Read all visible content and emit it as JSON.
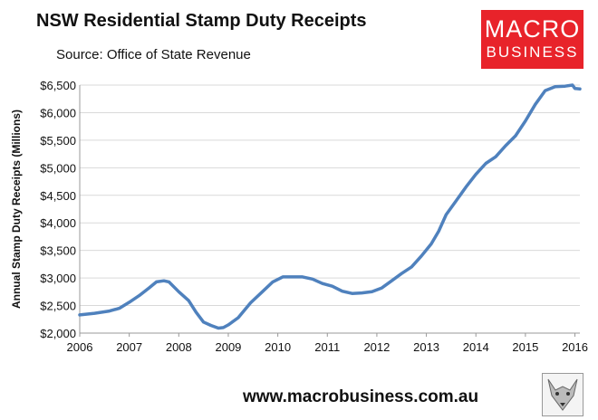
{
  "header": {
    "title": "NSW Residential Stamp Duty Receipts",
    "source": "Source: Office of State Revenue"
  },
  "logo": {
    "line1": "MACRO",
    "line2": "BUSINESS"
  },
  "footer": {
    "website": "www.macrobusiness.com.au"
  },
  "colors": {
    "line": "#4f81bd",
    "logo_bg": "#e8232a",
    "grid": "#d9d9d9"
  },
  "chart_data": {
    "type": "line",
    "title": "NSW Residential Stamp Duty Receipts",
    "xlabel": "",
    "ylabel": "Annual Stamp Duty Receipts (Millions)",
    "xlim": [
      2006,
      2016.1
    ],
    "ylim": [
      2000,
      6500
    ],
    "x_ticks": [
      "2006",
      "2007",
      "2008",
      "2009",
      "2010",
      "2011",
      "2012",
      "2013",
      "2014",
      "2015",
      "2016"
    ],
    "y_ticks": [
      "$2,000",
      "$2,500",
      "$3,000",
      "$3,500",
      "$4,000",
      "$4,500",
      "$5,000",
      "$5,500",
      "$6,000",
      "$6,500"
    ],
    "grid": "horizontal",
    "series": [
      {
        "name": "",
        "points": [
          [
            2006.0,
            2330
          ],
          [
            2006.3,
            2360
          ],
          [
            2006.6,
            2400
          ],
          [
            2006.8,
            2450
          ],
          [
            2007.0,
            2560
          ],
          [
            2007.2,
            2680
          ],
          [
            2007.4,
            2820
          ],
          [
            2007.55,
            2930
          ],
          [
            2007.7,
            2950
          ],
          [
            2007.8,
            2930
          ],
          [
            2008.0,
            2750
          ],
          [
            2008.2,
            2590
          ],
          [
            2008.35,
            2380
          ],
          [
            2008.5,
            2200
          ],
          [
            2008.65,
            2140
          ],
          [
            2008.8,
            2090
          ],
          [
            2008.9,
            2100
          ],
          [
            2009.0,
            2150
          ],
          [
            2009.2,
            2280
          ],
          [
            2009.45,
            2550
          ],
          [
            2009.7,
            2760
          ],
          [
            2009.9,
            2930
          ],
          [
            2010.1,
            3020
          ],
          [
            2010.3,
            3020
          ],
          [
            2010.5,
            3020
          ],
          [
            2010.7,
            2980
          ],
          [
            2010.9,
            2900
          ],
          [
            2011.1,
            2850
          ],
          [
            2011.3,
            2760
          ],
          [
            2011.5,
            2720
          ],
          [
            2011.7,
            2730
          ],
          [
            2011.9,
            2750
          ],
          [
            2012.1,
            2820
          ],
          [
            2012.3,
            2950
          ],
          [
            2012.5,
            3080
          ],
          [
            2012.7,
            3200
          ],
          [
            2012.9,
            3400
          ],
          [
            2013.1,
            3620
          ],
          [
            2013.25,
            3850
          ],
          [
            2013.4,
            4150
          ],
          [
            2013.6,
            4400
          ],
          [
            2013.8,
            4650
          ],
          [
            2014.0,
            4880
          ],
          [
            2014.2,
            5080
          ],
          [
            2014.4,
            5200
          ],
          [
            2014.6,
            5400
          ],
          [
            2014.8,
            5580
          ],
          [
            2015.0,
            5850
          ],
          [
            2015.2,
            6150
          ],
          [
            2015.4,
            6400
          ],
          [
            2015.6,
            6470
          ],
          [
            2015.8,
            6480
          ],
          [
            2015.95,
            6500
          ],
          [
            2016.0,
            6440
          ],
          [
            2016.1,
            6430
          ]
        ]
      }
    ]
  }
}
